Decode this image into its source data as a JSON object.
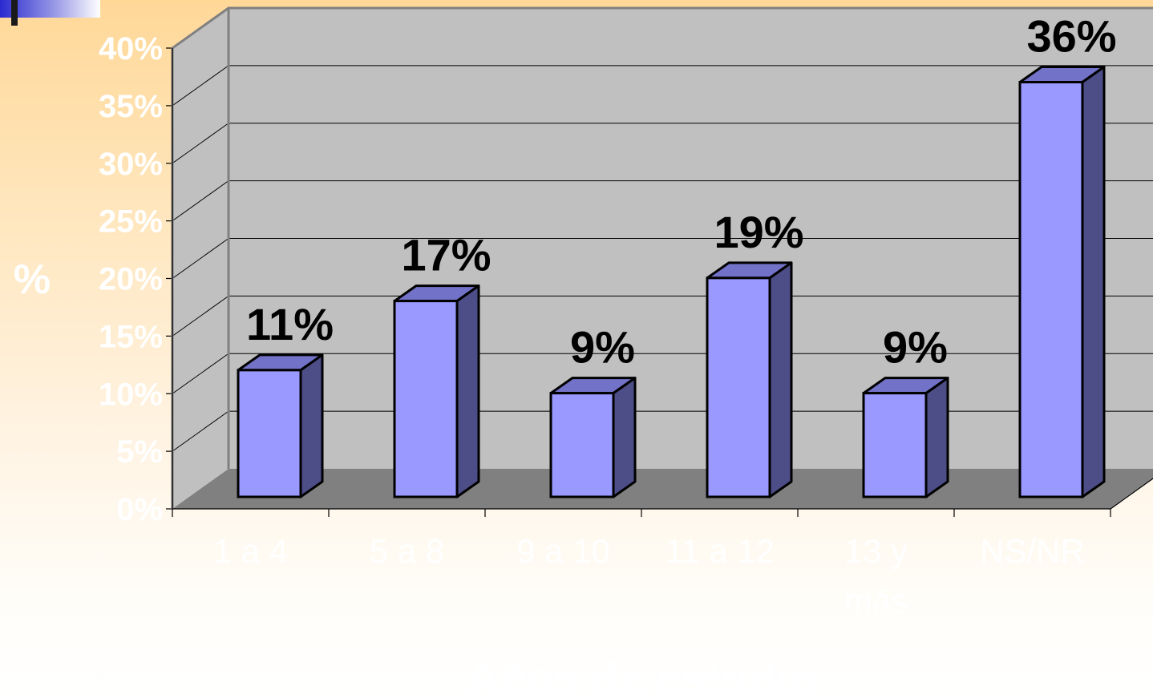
{
  "chart_data": {
    "type": "bar",
    "style": "3d-column",
    "categories": [
      "1 a 4",
      "5 a 8",
      "9 a 10",
      "11 a 12",
      "13 y\nmás",
      "NS/NR"
    ],
    "values": [
      11,
      17,
      9,
      19,
      9,
      36
    ],
    "data_labels": [
      "11%",
      "17%",
      "9%",
      "19%",
      "9%",
      "36%"
    ],
    "y_tick_labels": [
      "0%",
      "5%",
      "10%",
      "15%",
      "20%",
      "25%",
      "30%",
      "35%",
      "40%"
    ],
    "ylim": [
      0,
      40
    ],
    "ylabel": "%",
    "xlabel": "Años de estudio",
    "grid": true,
    "legend": "none",
    "colors": {
      "bar_front": "#9999ff",
      "bar_top": "#7272c8",
      "bar_side": "#4d4d88",
      "back_wall": "#c0c0c0",
      "side_wall": "#c0c0c0",
      "floor": "#808080",
      "axis_text": "#ffffff",
      "data_label": "#000000"
    }
  }
}
